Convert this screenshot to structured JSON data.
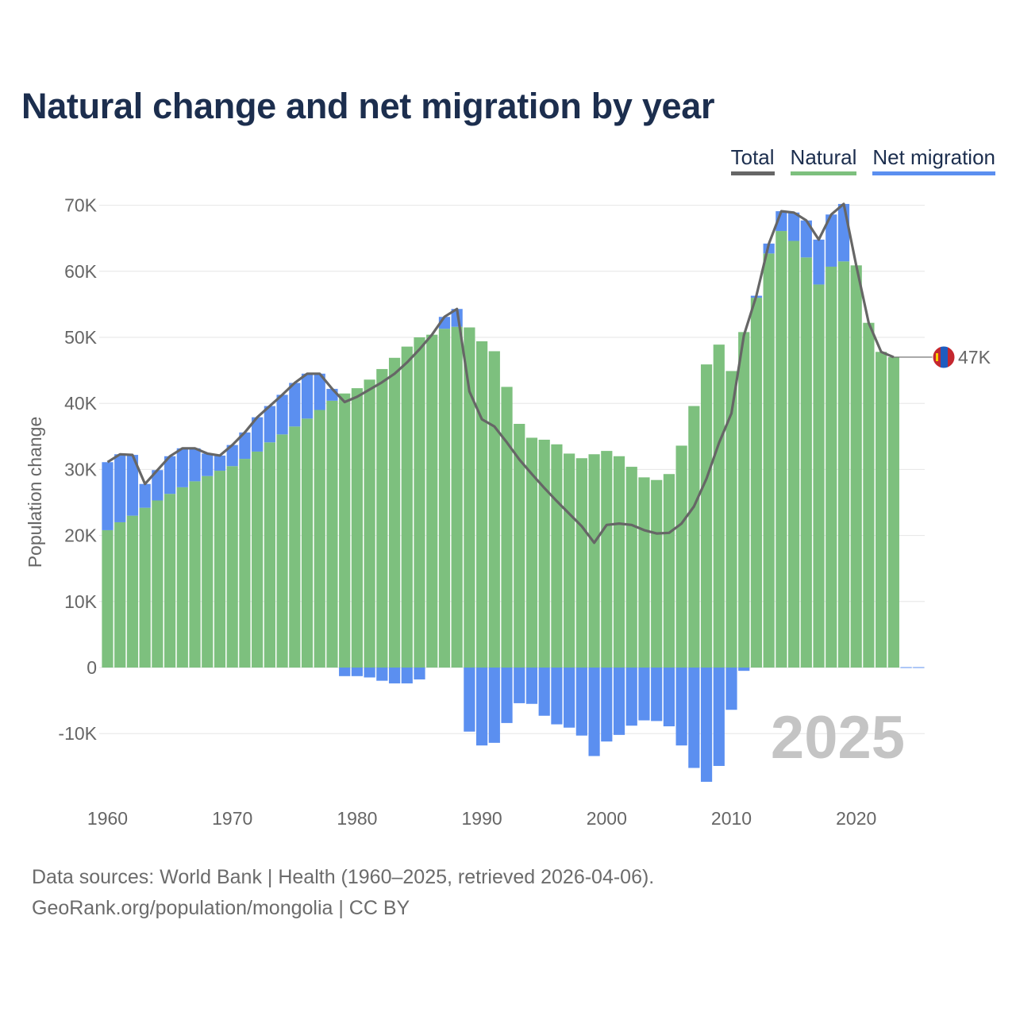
{
  "title": "Natural change and net migration by year",
  "legend": {
    "total": "Total",
    "natural": "Natural",
    "migration": "Net migration"
  },
  "colors": {
    "natural": "#7dc07e",
    "migration": "#5b8ff0",
    "total": "#666666",
    "title": "#1c2e4e"
  },
  "year_label": "2025",
  "end_label": "47K",
  "flag_icon": "mongolia-flag-icon",
  "footer": {
    "line1": "Data sources: World Bank | Health (1960–2025, retrieved 2026-04-06).",
    "line2": "GeoRank.org/population/mongolia | CC BY"
  },
  "chart_data": {
    "type": "bar",
    "stacked": true,
    "ylabel": "Population change",
    "ylim": [
      -17500,
      70000
    ],
    "yticks": [
      -10000,
      0,
      10000,
      20000,
      30000,
      40000,
      50000,
      60000,
      70000
    ],
    "ytick_labels": [
      "-10K",
      "0",
      "10K",
      "20K",
      "30K",
      "40K",
      "50K",
      "60K",
      "70K"
    ],
    "xticks": [
      1960,
      1970,
      1980,
      1990,
      2000,
      2010,
      2020
    ],
    "x": [
      1960,
      1961,
      1962,
      1963,
      1964,
      1965,
      1966,
      1967,
      1968,
      1969,
      1970,
      1971,
      1972,
      1973,
      1974,
      1975,
      1976,
      1977,
      1978,
      1979,
      1980,
      1981,
      1982,
      1983,
      1984,
      1985,
      1986,
      1987,
      1988,
      1989,
      1990,
      1991,
      1992,
      1993,
      1994,
      1995,
      1996,
      1997,
      1998,
      1999,
      2000,
      2001,
      2002,
      2003,
      2004,
      2005,
      2006,
      2007,
      2008,
      2009,
      2010,
      2011,
      2012,
      2013,
      2014,
      2015,
      2016,
      2017,
      2018,
      2019,
      2020,
      2021,
      2022,
      2023,
      2024,
      2025
    ],
    "series": [
      {
        "name": "Natural",
        "values": [
          20800,
          22000,
          23000,
          24200,
          25300,
          26300,
          27300,
          28200,
          29000,
          29800,
          30500,
          31600,
          32700,
          34100,
          35300,
          36500,
          37700,
          39000,
          40400,
          41500,
          42300,
          43600,
          45200,
          46900,
          48600,
          50000,
          50400,
          51300,
          51600,
          51500,
          49400,
          47900,
          42500,
          36900,
          34800,
          34500,
          33800,
          32400,
          31700,
          32300,
          32800,
          32000,
          30400,
          28800,
          28400,
          29300,
          33600,
          39600,
          45900,
          48900,
          44900,
          50800,
          56000,
          62700,
          66100,
          64600,
          62100,
          58000,
          60700,
          61500,
          60900,
          52200,
          47800,
          47000,
          0,
          0
        ]
      },
      {
        "name": "Net migration",
        "values": [
          10300,
          10300,
          9200,
          3600,
          4600,
          5700,
          5900,
          5000,
          3400,
          2300,
          3200,
          4000,
          5200,
          5500,
          6000,
          6600,
          6800,
          5500,
          1800,
          -1300,
          -1300,
          -1500,
          -2000,
          -2400,
          -2400,
          -1800,
          0,
          1800,
          2700,
          -9700,
          -11800,
          -11400,
          -8400,
          -5400,
          -5500,
          -7300,
          -8600,
          -9100,
          -10300,
          -13400,
          -11200,
          -10200,
          -8800,
          -8000,
          -8100,
          -8900,
          -11800,
          -15200,
          -17300,
          -14900,
          -6400,
          -500,
          300,
          1500,
          3000,
          4300,
          5600,
          6800,
          7900,
          8700,
          0,
          0,
          0,
          0,
          0,
          0
        ]
      },
      {
        "name": "Total",
        "values": [
          31100,
          32300,
          32200,
          27800,
          29900,
          32000,
          33200,
          33200,
          32400,
          32100,
          33700,
          35600,
          37900,
          39600,
          41300,
          43100,
          44500,
          44500,
          42200,
          40200,
          41000,
          42100,
          43200,
          44500,
          46200,
          48200,
          50400,
          53100,
          54300,
          41800,
          37600,
          36500,
          34100,
          31500,
          29300,
          27200,
          25200,
          23300,
          21400,
          18900,
          21600,
          21800,
          21600,
          20800,
          20300,
          20400,
          21800,
          24400,
          28600,
          34000,
          38500,
          50300,
          56300,
          64200,
          69100,
          68900,
          67700,
          64800,
          68600,
          70200,
          60900,
          52200,
          47800,
          47000,
          null,
          null
        ]
      }
    ],
    "end_value_label": "47K"
  }
}
